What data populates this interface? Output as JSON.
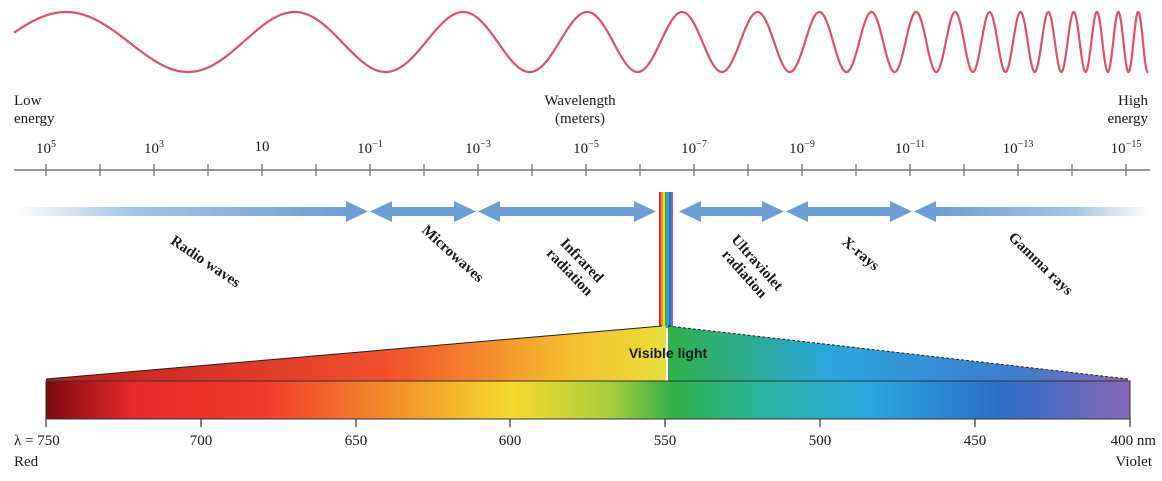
{
  "labels": {
    "low_energy": [
      "Low",
      "energy"
    ],
    "high_energy": [
      "High",
      "energy"
    ],
    "wavelength": [
      "Wavelength",
      "(meters)"
    ],
    "visible_light": "Visible light"
  },
  "wavelength_scale": {
    "unit": "meters",
    "ticks": [
      {
        "base": "10",
        "exp": "5"
      },
      {
        "base": "10",
        "exp": "3"
      },
      {
        "base": "10",
        "exp": ""
      },
      {
        "base": "10",
        "exp": "−1"
      },
      {
        "base": "10",
        "exp": "−3"
      },
      {
        "base": "10",
        "exp": "−5"
      },
      {
        "base": "10",
        "exp": "−7"
      },
      {
        "base": "10",
        "exp": "−9"
      },
      {
        "base": "10",
        "exp": "−11"
      },
      {
        "base": "10",
        "exp": "−13"
      },
      {
        "base": "10",
        "exp": "−15"
      }
    ]
  },
  "regions": [
    {
      "key": "radio",
      "lines": [
        "Radio waves"
      ]
    },
    {
      "key": "microwave",
      "lines": [
        "Microwaves"
      ]
    },
    {
      "key": "infrared",
      "lines": [
        "Infrared",
        "radiation"
      ]
    },
    {
      "key": "ultraviolet",
      "lines": [
        "Ultraviolet",
        "radiation"
      ]
    },
    {
      "key": "xray",
      "lines": [
        "X-rays"
      ]
    },
    {
      "key": "gamma",
      "lines": [
        "Gamma rays"
      ]
    }
  ],
  "visible_scale": {
    "ticks": [
      "λ = 750",
      "700",
      "650",
      "600",
      "550",
      "500",
      "450",
      "400 nm"
    ],
    "left_end": "Red",
    "right_end": "Violet"
  },
  "colors": {
    "wave": "#e0506a",
    "arrow": "#6a9fd6",
    "axis": "#666666"
  }
}
